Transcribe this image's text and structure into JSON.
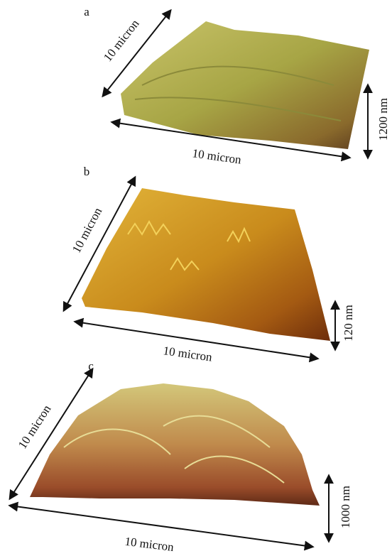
{
  "panels": [
    {
      "label": "a",
      "depth_axis": "10 micron",
      "width_axis": "10 micron",
      "height_axis": "1200 nm"
    },
    {
      "label": "b",
      "depth_axis": "10 micron",
      "width_axis": "10 micron",
      "height_axis": "120 nm"
    },
    {
      "label": "c",
      "depth_axis": "10 micron",
      "width_axis": "10 micron",
      "height_axis": "1000 nm"
    }
  ]
}
